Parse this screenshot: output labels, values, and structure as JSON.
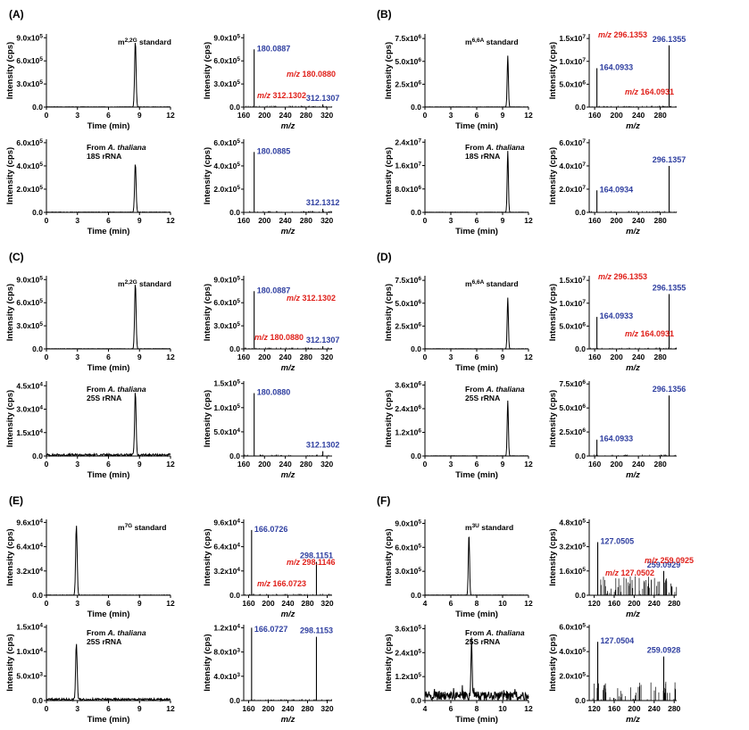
{
  "chart_data": [
    {
      "panel": "(A)",
      "chromatograms": [
        {
          "type": "line",
          "xlabel": "Time (min)",
          "ylabel": "Intensity (cps)",
          "xticks": [
            "0",
            "3",
            "6",
            "9",
            "12"
          ],
          "xlim": [
            0,
            12
          ],
          "yticks": [
            "0.0",
            "3.0x10^5",
            "6.0x10^5",
            "9.0x10^5"
          ],
          "ylim": [
            0,
            950000.0
          ],
          "annotation": [
            "m^2,2G standard"
          ],
          "peak_time": 8.6,
          "peak_height": 850000.0,
          "noise": 0.004
        },
        {
          "type": "line",
          "xlabel": "Time (min)",
          "ylabel": "Intensity (cps)",
          "xticks": [
            "0",
            "3",
            "6",
            "9",
            "12"
          ],
          "xlim": [
            0,
            12
          ],
          "yticks": [
            "0.0",
            "2.0x10^5",
            "4.0x10^5",
            "6.0x10^5"
          ],
          "ylim": [
            0,
            630000.0
          ],
          "annotation": [
            "From |A. thaliana|",
            "18S rRNA"
          ],
          "peak_time": 8.6,
          "peak_height": 420000.0,
          "noise": 0.006
        }
      ],
      "spectra": [
        {
          "type": "bar",
          "xlabel": "m/z",
          "ylabel": "Intensity (cps)",
          "xticks": [
            "160",
            "200",
            "240",
            "280",
            "320"
          ],
          "xlim": [
            160,
            330
          ],
          "yticks": [
            "0.0",
            "3.0x10^5",
            "6.0x10^5",
            "9.0x10^5"
          ],
          "ylim": [
            0,
            950000.0
          ],
          "peaks": [
            [
              180.0887,
              750000.0
            ],
            [
              312.1307,
              35000.0
            ]
          ],
          "labels": [
            "180.0887",
            "312.1307"
          ],
          "fragments": [
            "m/z 180.0880",
            "m/z 312.1302"
          ]
        },
        {
          "type": "bar",
          "xlabel": "m/z",
          "ylabel": "Intensity (cps)",
          "xticks": [
            "160",
            "200",
            "240",
            "280",
            "320"
          ],
          "xlim": [
            160,
            330
          ],
          "yticks": [
            "0.0",
            "2.0x10^5",
            "4.0x10^5",
            "6.0x10^5"
          ],
          "ylim": [
            0,
            630000.0
          ],
          "peaks": [
            [
              180.0885,
              520000.0
            ],
            [
              312.1312,
              30000.0
            ]
          ],
          "labels": [
            "180.0885",
            "312.1312"
          ],
          "fragments": []
        }
      ]
    },
    {
      "panel": "(B)",
      "chromatograms": [
        {
          "type": "line",
          "xlabel": "Time (min)",
          "ylabel": "Intensity (cps)",
          "xticks": [
            "0",
            "3",
            "6",
            "9",
            "12"
          ],
          "xlim": [
            0,
            12
          ],
          "yticks": [
            "0.0",
            "2.5x10^6",
            "5.0x10^6",
            "7.5x10^6"
          ],
          "ylim": [
            0,
            8000000.0
          ],
          "annotation": [
            "m^6,6A standard"
          ],
          "peak_time": 9.6,
          "peak_height": 5600000.0,
          "noise": 0.003
        },
        {
          "type": "line",
          "xlabel": "Time (min)",
          "ylabel": "Intensity (cps)",
          "xticks": [
            "0",
            "3",
            "6",
            "9",
            "12"
          ],
          "xlim": [
            0,
            12
          ],
          "yticks": [
            "0.0",
            "8.0x10^6",
            "1.6x10^7",
            "2.4x10^7"
          ],
          "ylim": [
            0,
            25000000.0
          ],
          "annotation": [
            "From |A. thaliana|",
            "18S rRNA"
          ],
          "peak_time": 9.6,
          "peak_height": 21000000.0,
          "noise": 0.003
        }
      ],
      "spectra": [
        {
          "type": "bar",
          "xlabel": "m/z",
          "ylabel": "Intensity (cps)",
          "xticks": [
            "160",
            "200",
            "240",
            "280"
          ],
          "xlim": [
            150,
            310
          ],
          "yticks": [
            "0.0",
            "5.0x10^6",
            "1.0x10^7",
            "1.5x10^7"
          ],
          "ylim": [
            0,
            16000000.0
          ],
          "peaks": [
            [
              164.0933,
              8500000.0
            ],
            [
              296.1355,
              13500000.0
            ]
          ],
          "labels": [
            "164.0933",
            "296.1355"
          ],
          "fragments": [
            "m/z 296.1353",
            "m/z 164.0931"
          ]
        },
        {
          "type": "bar",
          "xlabel": "m/z",
          "ylabel": "Intensity (cps)",
          "xticks": [
            "160",
            "200",
            "240",
            "280"
          ],
          "xlim": [
            150,
            310
          ],
          "yticks": [
            "0.0",
            "2.0x10^7",
            "4.0x10^7",
            "6.0x10^7"
          ],
          "ylim": [
            0,
            63000000.0
          ],
          "peaks": [
            [
              164.0934,
              19000000.0
            ],
            [
              296.1357,
              40000000.0
            ]
          ],
          "labels": [
            "164.0934",
            "296.1357"
          ],
          "fragments": []
        }
      ]
    },
    {
      "panel": "(C)",
      "chromatograms": [
        {
          "type": "line",
          "xlabel": "Time (min)",
          "ylabel": "Intensity (cps)",
          "xticks": [
            "0",
            "3",
            "6",
            "9",
            "12"
          ],
          "xlim": [
            0,
            12
          ],
          "yticks": [
            "0.0",
            "3.0x10^5",
            "6.0x10^5",
            "9.0x10^5"
          ],
          "ylim": [
            0,
            950000.0
          ],
          "annotation": [
            "m^2,2G standard"
          ],
          "peak_time": 8.6,
          "peak_height": 850000.0,
          "noise": 0.004
        },
        {
          "type": "line",
          "xlabel": "Time (min)",
          "ylabel": "Intensity (cps)",
          "xticks": [
            "0",
            "3",
            "6",
            "9",
            "12"
          ],
          "xlim": [
            0,
            12
          ],
          "yticks": [
            "0.0",
            "1.5x10^4",
            "3.0x10^4",
            "4.5x10^4"
          ],
          "ylim": [
            0,
            48000.0
          ],
          "annotation": [
            "From |A. thaliana|",
            "25S rRNA"
          ],
          "peak_time": 8.6,
          "peak_height": 40000.0,
          "noise": 0.03
        }
      ],
      "spectra": [
        {
          "type": "bar",
          "xlabel": "m/z",
          "ylabel": "Intensity (cps)",
          "xticks": [
            "160",
            "200",
            "240",
            "280",
            "320"
          ],
          "xlim": [
            160,
            330
          ],
          "yticks": [
            "0.0",
            "3.0x10^5",
            "6.0x10^5",
            "9.0x10^5"
          ],
          "ylim": [
            0,
            950000.0
          ],
          "peaks": [
            [
              180.0887,
              750000.0
            ],
            [
              312.1307,
              35000.0
            ]
          ],
          "labels": [
            "180.0887",
            "312.1307"
          ],
          "fragments": [
            "m/z 312.1302",
            "m/z 180.0880"
          ]
        },
        {
          "type": "bar",
          "xlabel": "m/z",
          "ylabel": "Intensity (cps)",
          "xticks": [
            "160",
            "200",
            "240",
            "280",
            "320"
          ],
          "xlim": [
            160,
            330
          ],
          "yticks": [
            "0.0",
            "5.0x10^4",
            "1.0x10^5",
            "1.5x10^5"
          ],
          "ylim": [
            0,
            155000.0
          ],
          "peaks": [
            [
              180.088,
              130000.0
            ],
            [
              312.1302,
              10000.0
            ]
          ],
          "labels": [
            "180.0880",
            "312.1302"
          ],
          "fragments": []
        }
      ]
    },
    {
      "panel": "(D)",
      "chromatograms": [
        {
          "type": "line",
          "xlabel": "Time (min)",
          "ylabel": "Intensity (cps)",
          "xticks": [
            "0",
            "3",
            "6",
            "9",
            "12"
          ],
          "xlim": [
            0,
            12
          ],
          "yticks": [
            "0.0",
            "2.5x10^6",
            "5.0x10^6",
            "7.5x10^6"
          ],
          "ylim": [
            0,
            8000000.0
          ],
          "annotation": [
            "m^6,6A standard"
          ],
          "peak_time": 9.6,
          "peak_height": 5600000.0,
          "noise": 0.003
        },
        {
          "type": "line",
          "xlabel": "Time (min)",
          "ylabel": "Intensity (cps)",
          "xticks": [
            "0",
            "3",
            "6",
            "9",
            "12"
          ],
          "xlim": [
            0,
            12
          ],
          "yticks": [
            "0.0",
            "1.2x10^6",
            "2.4x10^6",
            "3.6x10^6"
          ],
          "ylim": [
            0,
            3800000.0
          ],
          "annotation": [
            "From |A. thaliana|",
            "25S rRNA"
          ],
          "peak_time": 9.6,
          "peak_height": 2800000.0,
          "noise": 0.003
        }
      ],
      "spectra": [
        {
          "type": "bar",
          "xlabel": "m/z",
          "ylabel": "Intensity (cps)",
          "xticks": [
            "160",
            "200",
            "240",
            "280"
          ],
          "xlim": [
            150,
            310
          ],
          "yticks": [
            "0.0",
            "5.0x10^6",
            "1.0x10^7",
            "1.5x10^7"
          ],
          "ylim": [
            0,
            16000000.0
          ],
          "peaks": [
            [
              164.0933,
              7000000.0
            ],
            [
              296.1355,
              12000000.0
            ]
          ],
          "labels": [
            "164.0933",
            "296.1355"
          ],
          "fragments": [
            "m/z 296.1353",
            "m/z 164.0931"
          ]
        },
        {
          "type": "bar",
          "xlabel": "m/z",
          "ylabel": "Intensity (cps)",
          "xticks": [
            "160",
            "200",
            "240",
            "280"
          ],
          "xlim": [
            150,
            310
          ],
          "yticks": [
            "0.0",
            "2.5x10^6",
            "5.0x10^6",
            "7.5x10^6"
          ],
          "ylim": [
            0,
            7800000.0
          ],
          "peaks": [
            [
              164.0933,
              1700000.0
            ],
            [
              296.1356,
              6300000.0
            ]
          ],
          "labels": [
            "164.0933",
            "296.1356"
          ],
          "fragments": []
        }
      ]
    },
    {
      "panel": "(E)",
      "chromatograms": [
        {
          "type": "line",
          "xlabel": "Time (min)",
          "ylabel": "Intensity (cps)",
          "xticks": [
            "0",
            "3",
            "6",
            "9",
            "12"
          ],
          "xlim": [
            0,
            12
          ],
          "yticks": [
            "0.0",
            "3.2x10^4",
            "6.4x10^4",
            "9.6x10^4"
          ],
          "ylim": [
            0,
            100000.0
          ],
          "annotation": [
            "m^7G standard"
          ],
          "peak_time": 2.9,
          "peak_height": 92000.0,
          "noise": 0.004
        },
        {
          "type": "line",
          "xlabel": "Time (min)",
          "ylabel": "Intensity (cps)",
          "xticks": [
            "0",
            "3",
            "6",
            "9",
            "12"
          ],
          "xlim": [
            0,
            12
          ],
          "yticks": [
            "0.0",
            "5.0x10^3",
            "1.0x10^4",
            "1.5x10^4"
          ],
          "ylim": [
            0,
            15500.0
          ],
          "annotation": [
            "From |A. thaliana|",
            "25S rRNA"
          ],
          "peak_time": 2.9,
          "peak_height": 11500.0,
          "noise": 0.03
        }
      ],
      "spectra": [
        {
          "type": "bar",
          "xlabel": "m/z",
          "ylabel": "Intensity (cps)",
          "xticks": [
            "160",
            "200",
            "240",
            "280",
            "320"
          ],
          "xlim": [
            150,
            330
          ],
          "yticks": [
            "0.0",
            "3.2x10^4",
            "6.4x10^4",
            "9.6x10^4"
          ],
          "ylim": [
            0,
            100000.0
          ],
          "peaks": [
            [
              166.0726,
              86000.0
            ],
            [
              298.1151,
              44000.0
            ]
          ],
          "labels": [
            "166.0726",
            "298.1151"
          ],
          "fragments": [
            "m/z 298.1146",
            "m/z 166.0723"
          ]
        },
        {
          "type": "bar",
          "xlabel": "m/z",
          "ylabel": "Intensity (cps)",
          "xticks": [
            "160",
            "200",
            "240",
            "280",
            "320"
          ],
          "xlim": [
            150,
            330
          ],
          "yticks": [
            "0.0",
            "4.0x10^3",
            "8.0x10^3",
            "1.2x10^4"
          ],
          "ylim": [
            0,
            12500.0
          ],
          "peaks": [
            [
              166.0727,
              12000.0
            ],
            [
              298.1153,
              10500.0
            ]
          ],
          "labels": [
            "166.0727",
            "298.1153"
          ],
          "fragments": []
        }
      ]
    },
    {
      "panel": "(F)",
      "chromatograms": [
        {
          "type": "line",
          "xlabel": "Time (min)",
          "ylabel": "Intensity (cps)",
          "xticks": [
            "4",
            "6",
            "8",
            "10",
            "12"
          ],
          "xlim": [
            4,
            12
          ],
          "yticks": [
            "0.0",
            "3.0x10^5",
            "6.0x10^5",
            "9.0x10^5"
          ],
          "ylim": [
            0,
            950000.0
          ],
          "annotation": [
            "m^3U standard"
          ],
          "peak_time": 7.4,
          "peak_height": 760000.0,
          "noise": 0.004
        },
        {
          "type": "line",
          "xlabel": "Time (min)",
          "ylabel": "Intensity (cps)",
          "xticks": [
            "4",
            "6",
            "8",
            "10",
            "12"
          ],
          "xlim": [
            4,
            12
          ],
          "yticks": [
            "0.0",
            "1.2x10^5",
            "2.4x10^5",
            "3.6x10^5"
          ],
          "ylim": [
            0,
            380000.0
          ],
          "annotation": [
            "From |A. thaliana|",
            "25S rRNA"
          ],
          "peak_time": 7.6,
          "peak_height": 275000.0,
          "noise": 0.12
        }
      ],
      "spectra": [
        {
          "type": "bar",
          "xlabel": "m/z",
          "ylabel": "Intensity (cps)",
          "xticks": [
            "120",
            "160",
            "200",
            "240",
            "280"
          ],
          "xlim": [
            110,
            285
          ],
          "yticks": [
            "0.0",
            "1.6x10^5",
            "3.2x10^5",
            "4.8x10^5"
          ],
          "ylim": [
            0,
            500000.0
          ],
          "peaks": [
            [
              127.0505,
              350000.0
            ],
            [
              259.0929,
              160000.0
            ]
          ],
          "labels": [
            "127.0505",
            "259.0929"
          ],
          "fragments": [
            "m/z 259.0925",
            "m/z 127.0502"
          ]
        },
        {
          "type": "bar",
          "xlabel": "m/z",
          "ylabel": "Intensity (cps)",
          "xticks": [
            "120",
            "160",
            "200",
            "240",
            "280"
          ],
          "xlim": [
            110,
            285
          ],
          "yticks": [
            "0.0",
            "2.0x10^5",
            "4.0x10^5",
            "6.0x10^5"
          ],
          "ylim": [
            0,
            620000.0
          ],
          "peaks": [
            [
              127.0504,
              480000.0
            ],
            [
              259.0928,
              360000.0
            ]
          ],
          "labels": [
            "127.0504",
            "259.0928"
          ],
          "fragments": []
        }
      ]
    }
  ]
}
